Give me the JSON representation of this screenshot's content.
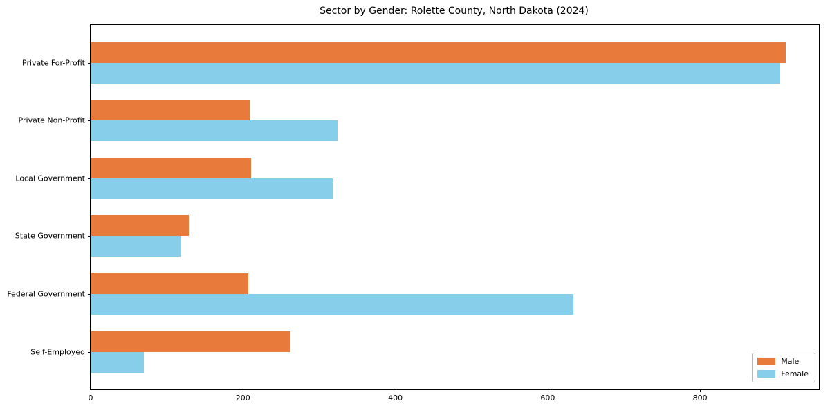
{
  "chart_data": {
    "type": "bar",
    "orientation": "horizontal",
    "title": "Sector by Gender: Rolette County, North Dakota (2024)",
    "categories": [
      "Private For-Profit",
      "Private Non-Profit",
      "Local Government",
      "State Government",
      "Federal Government",
      "Self-Employed"
    ],
    "series": [
      {
        "name": "Male",
        "color": "#e87a3c",
        "values": [
          912,
          209,
          211,
          129,
          207,
          262
        ]
      },
      {
        "name": "Female",
        "color": "#87ceeb",
        "values": [
          905,
          324,
          318,
          118,
          634,
          70
        ]
      }
    ],
    "xlabel": "",
    "ylabel": "",
    "x_ticks": [
      0,
      200,
      400,
      600,
      800
    ],
    "xlim": [
      0,
      956
    ],
    "grid": false,
    "legend": {
      "position": "lower right",
      "entries": [
        "Male",
        "Female"
      ]
    }
  }
}
